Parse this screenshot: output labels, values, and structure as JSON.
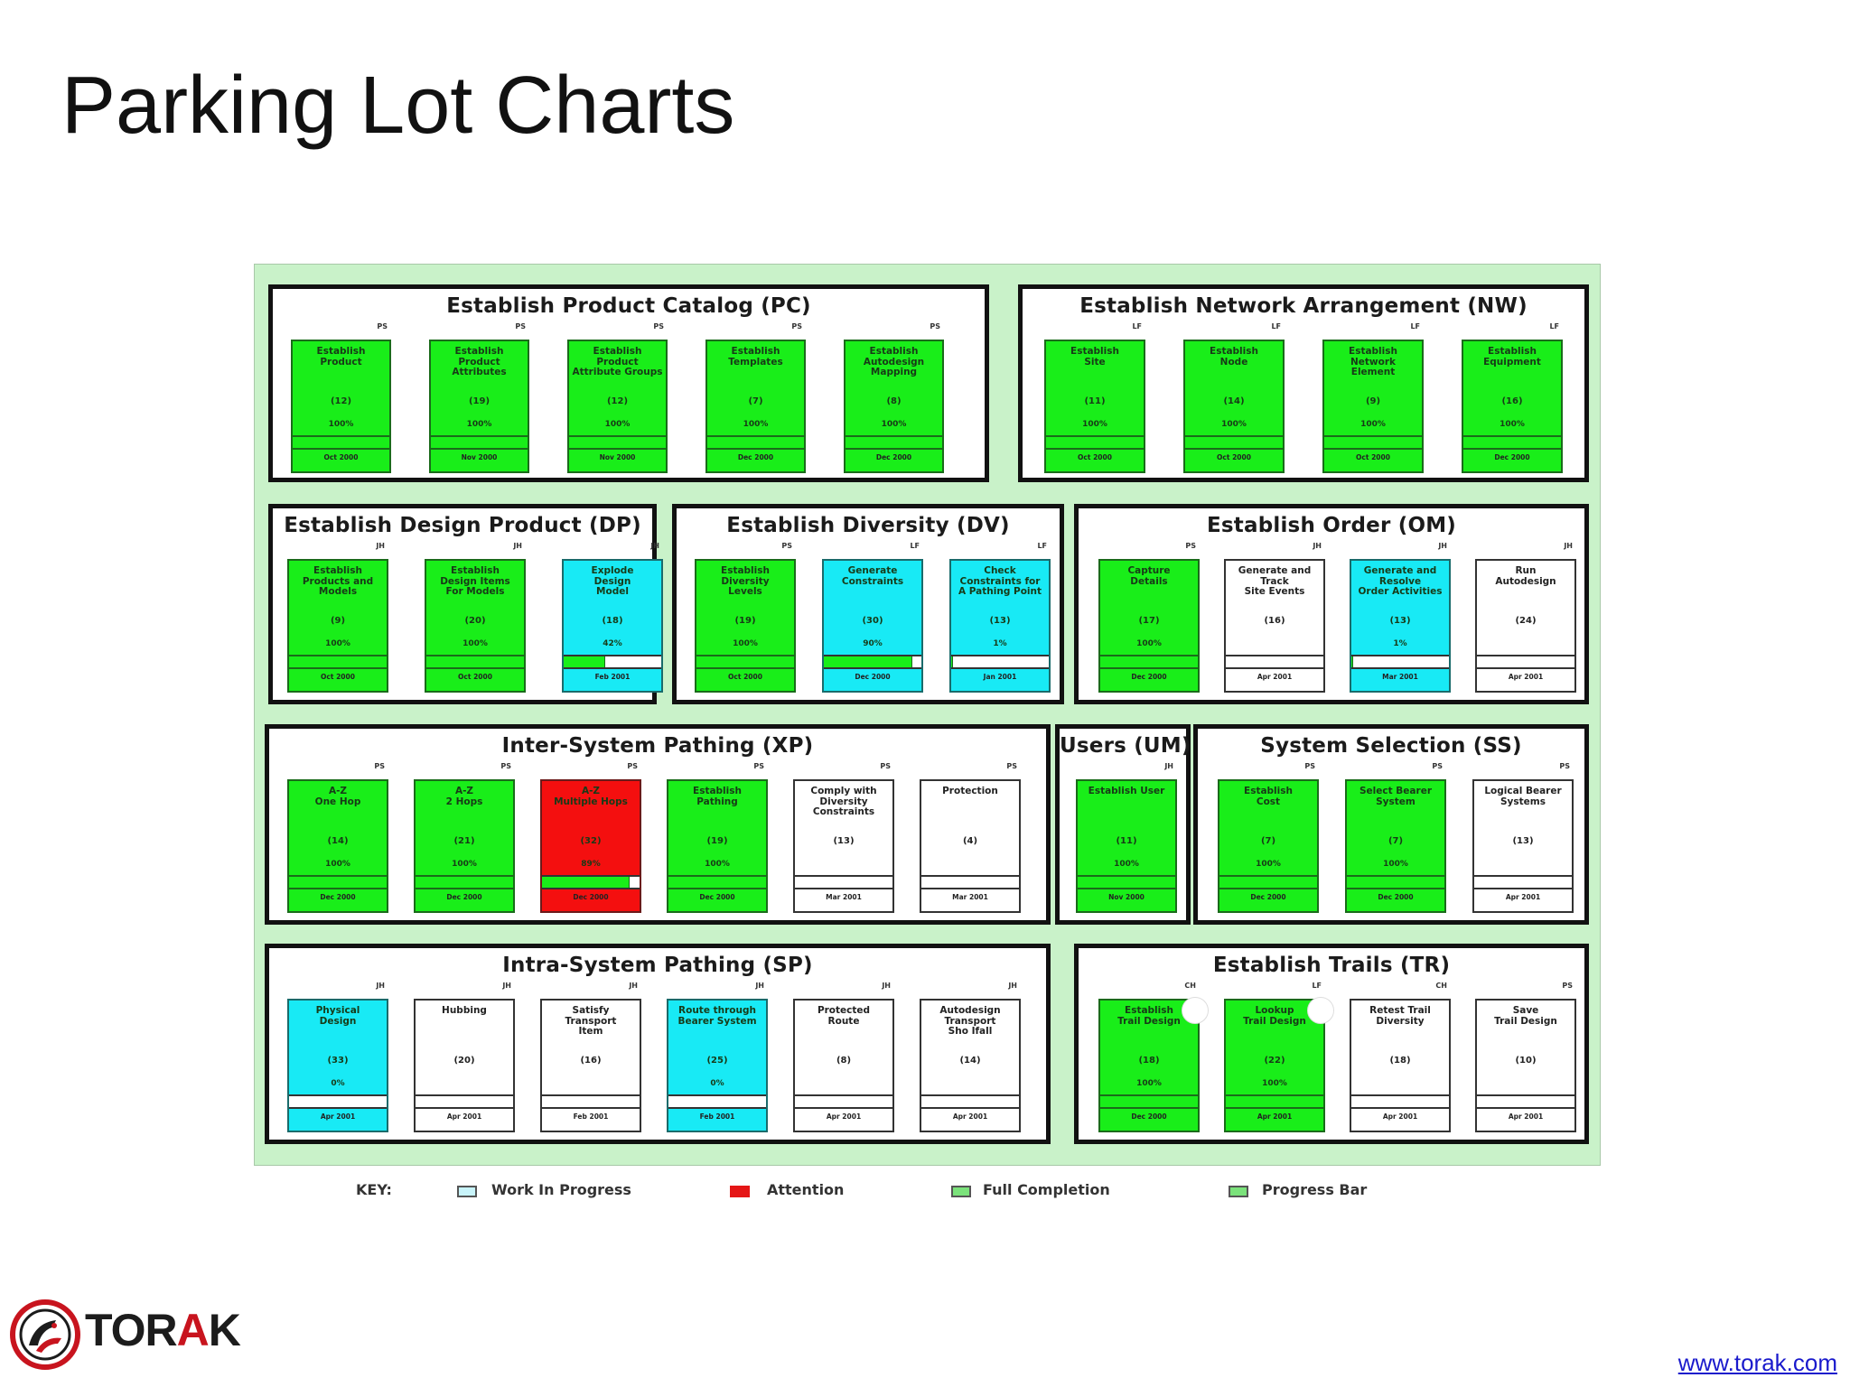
{
  "page": {
    "title": "Parking Lot Charts"
  },
  "board": {
    "areas": [
      {
        "name": "Establish Product Catalog (PC)",
        "features": [
          {
            "name": "Establish\nProduct",
            "initials": "PS",
            "count": "(12)",
            "percent": "100%",
            "status": "green",
            "date": "Oct 2000"
          },
          {
            "name": "Establish\nProduct\nAttributes",
            "initials": "PS",
            "count": "(19)",
            "percent": "100%",
            "status": "green",
            "date": "Nov 2000"
          },
          {
            "name": "Establish\nProduct\nAttribute Groups",
            "initials": "PS",
            "count": "(12)",
            "percent": "100%",
            "status": "green",
            "date": "Nov 2000"
          },
          {
            "name": "Establish\nTemplates",
            "initials": "PS",
            "count": "(7)",
            "percent": "100%",
            "status": "green",
            "date": "Dec 2000"
          },
          {
            "name": "Establish\nAutodesign\nMapping",
            "initials": "PS",
            "count": "(8)",
            "percent": "100%",
            "status": "green",
            "date": "Dec 2000"
          }
        ]
      },
      {
        "name": "Establish Network Arrangement (NW)",
        "features": [
          {
            "name": "Establish\nSite",
            "initials": "LF",
            "count": "(11)",
            "percent": "100%",
            "status": "green",
            "date": "Oct 2000"
          },
          {
            "name": "Establish\nNode",
            "initials": "LF",
            "count": "(14)",
            "percent": "100%",
            "status": "green",
            "date": "Oct 2000"
          },
          {
            "name": "Establish\nNetwork\nElement",
            "initials": "LF",
            "count": "(9)",
            "percent": "100%",
            "status": "green",
            "date": "Oct 2000"
          },
          {
            "name": "Establish\nEquipment",
            "initials": "LF",
            "count": "(16)",
            "percent": "100%",
            "status": "green",
            "date": "Dec 2000"
          }
        ]
      },
      {
        "name": "Establish Design Product (DP)",
        "features": [
          {
            "name": "Establish\nProducts and\nModels",
            "initials": "JH",
            "count": "(9)",
            "percent": "100%",
            "status": "green",
            "date": "Oct 2000"
          },
          {
            "name": "Establish\nDesign Items\nFor Models",
            "initials": "JH",
            "count": "(20)",
            "percent": "100%",
            "status": "green",
            "date": "Oct 2000"
          },
          {
            "name": "Explode\nDesign\nModel",
            "initials": "JH",
            "count": "(18)",
            "percent": "42%",
            "status": "cyan",
            "progress": 0.42,
            "date": "Feb 2001"
          }
        ]
      },
      {
        "name": "Establish Diversity (DV)",
        "features": [
          {
            "name": "Establish\nDiversity\nLevels",
            "initials": "PS",
            "count": "(19)",
            "percent": "100%",
            "status": "green",
            "date": "Oct 2000"
          },
          {
            "name": "Generate\nConstraints",
            "initials": "LF",
            "count": "(30)",
            "percent": "90%",
            "status": "cyan",
            "progress": 0.9,
            "date": "Dec 2000"
          },
          {
            "name": "Check\nConstraints for\nA Pathing Point",
            "initials": "LF",
            "count": "(13)",
            "percent": "1%",
            "status": "cyan",
            "progress": 0.01,
            "date": "Jan 2001"
          }
        ]
      },
      {
        "name": "Establish Order (OM)",
        "features": [
          {
            "name": "Capture\nDetails",
            "initials": "PS",
            "count": "(17)",
            "percent": "100%",
            "status": "green",
            "date": "Dec 2000"
          },
          {
            "name": "Generate and\nTrack\nSite Events",
            "initials": "JH",
            "count": "(16)",
            "percent": "",
            "status": "white",
            "date": "Apr 2001"
          },
          {
            "name": "Generate and\nResolve\nOrder Activities",
            "initials": "JH",
            "count": "(13)",
            "percent": "1%",
            "status": "cyan",
            "progress": 0.01,
            "date": "Mar 2001"
          },
          {
            "name": "Run\nAutodesign",
            "initials": "JH",
            "count": "(24)",
            "percent": "",
            "status": "white",
            "date": "Apr 2001"
          }
        ]
      },
      {
        "name": "Inter-System Pathing (XP)",
        "features": [
          {
            "name": "A-Z\nOne Hop",
            "initials": "PS",
            "count": "(14)",
            "percent": "100%",
            "status": "green",
            "date": "Dec 2000"
          },
          {
            "name": "A-Z\n2 Hops",
            "initials": "PS",
            "count": "(21)",
            "percent": "100%",
            "status": "green",
            "date": "Dec 2000"
          },
          {
            "name": "A-Z\nMultiple Hops",
            "initials": "PS",
            "count": "(32)",
            "percent": "89%",
            "status": "red",
            "progress": 0.89,
            "date": "Dec 2000"
          },
          {
            "name": "Establish\nPathing",
            "initials": "PS",
            "count": "(19)",
            "percent": "100%",
            "status": "green",
            "date": "Dec 2000"
          },
          {
            "name": "Comply with\nDiversity\nConstraints",
            "initials": "PS",
            "count": "(13)",
            "percent": "",
            "status": "white",
            "date": "Mar 2001"
          },
          {
            "name": "Protection",
            "initials": "PS",
            "count": "(4)",
            "percent": "",
            "status": "white",
            "date": "Mar 2001"
          }
        ]
      },
      {
        "name": "Users (UM)",
        "features": [
          {
            "name": "Establish User",
            "initials": "JH",
            "count": "(11)",
            "percent": "100%",
            "status": "green",
            "date": "Nov 2000"
          }
        ]
      },
      {
        "name": "System Selection (SS)",
        "features": [
          {
            "name": "Establish\nCost",
            "initials": "PS",
            "count": "(7)",
            "percent": "100%",
            "status": "green",
            "date": "Dec 2000"
          },
          {
            "name": "Select Bearer\nSystem",
            "initials": "PS",
            "count": "(7)",
            "percent": "100%",
            "status": "green",
            "date": "Dec 2000"
          },
          {
            "name": "Logical Bearer\nSystems",
            "initials": "PS",
            "count": "(13)",
            "percent": "",
            "status": "white",
            "date": "Apr 2001"
          }
        ]
      },
      {
        "name": "Intra-System Pathing (SP)",
        "features": [
          {
            "name": "Physical\nDesign",
            "initials": "JH",
            "count": "(33)",
            "percent": "0%",
            "status": "cyan",
            "progress": 0,
            "date": "Apr 2001"
          },
          {
            "name": "Hubbing",
            "initials": "JH",
            "count": "(20)",
            "percent": "",
            "status": "white",
            "date": "Apr 2001"
          },
          {
            "name": "Satisfy\nTransport\nItem",
            "initials": "JH",
            "count": "(16)",
            "percent": "",
            "status": "white",
            "date": "Feb 2001"
          },
          {
            "name": "Route through\nBearer System",
            "initials": "JH",
            "count": "(25)",
            "percent": "0%",
            "status": "cyan",
            "progress": 0,
            "date": "Feb 2001"
          },
          {
            "name": "Protected\nRoute",
            "initials": "JH",
            "count": "(8)",
            "percent": "",
            "status": "white",
            "date": "Apr 2001"
          },
          {
            "name": "Autodesign\nTransport\nSho Ifall",
            "initials": "JH",
            "count": "(14)",
            "percent": "",
            "status": "white",
            "date": "Apr 2001"
          }
        ]
      },
      {
        "name": "Establish Trails (TR)",
        "features": [
          {
            "name": "Establish\nTrail Design",
            "initials": "CH",
            "count": "(18)",
            "percent": "100%",
            "status": "green",
            "date": "Dec 2000",
            "dot": true
          },
          {
            "name": "Lookup\nTrail Design",
            "initials": "LF",
            "count": "(22)",
            "percent": "100%",
            "status": "green",
            "date": "Apr 2001",
            "dot": true
          },
          {
            "name": "Retest Trail\nDiversity",
            "initials": "CH",
            "count": "(18)",
            "percent": "",
            "status": "white",
            "date": "Apr 2001"
          },
          {
            "name": "Save\nTrail Design",
            "initials": "PS",
            "count": "(10)",
            "percent": "",
            "status": "white",
            "date": "Apr 2001"
          }
        ]
      }
    ]
  },
  "key": {
    "label": "KEY:",
    "items": [
      {
        "label": "Work In Progress",
        "color": "#c8f4fa"
      },
      {
        "label": "Attention",
        "color": "#e51616"
      },
      {
        "label": "Full Completion",
        "color": "#7be27b"
      },
      {
        "label": "Progress Bar",
        "color": "#7be27b"
      }
    ]
  },
  "colors": {
    "green": "#19ee19",
    "cyan": "#18eaf5",
    "red": "#f40f0f",
    "board": "#c9f2c9"
  },
  "footer": {
    "logo": {
      "text_main": "TOR",
      "text_accent": "A",
      "text_end": "K"
    },
    "website": "www.torak.com"
  }
}
